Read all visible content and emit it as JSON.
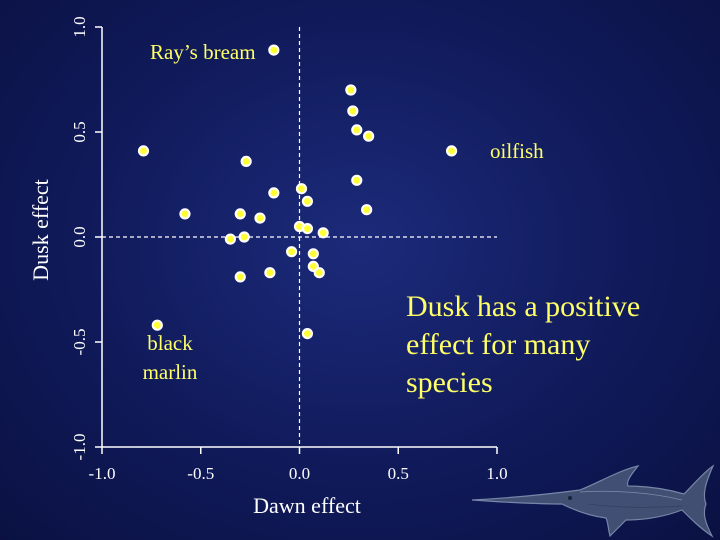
{
  "chart_data": {
    "type": "scatter",
    "xlabel": "Dawn effect",
    "ylabel": "Dusk effect",
    "xlim": [
      -1.0,
      1.0
    ],
    "ylim": [
      -1.0,
      1.0
    ],
    "xticks": [
      "-1.0",
      "-0.5",
      "0.0",
      "0.5",
      "1.0"
    ],
    "yticks": [
      "-1.0",
      "-0.5",
      "0.0",
      "0.5",
      "1.0"
    ],
    "reference_lines": {
      "x": 0.0,
      "y": 0.0
    },
    "points": [
      {
        "x": -0.13,
        "y": 0.89,
        "label": "Ray’s bream"
      },
      {
        "x": 0.26,
        "y": 0.7
      },
      {
        "x": 0.27,
        "y": 0.6
      },
      {
        "x": 0.29,
        "y": 0.51
      },
      {
        "x": 0.35,
        "y": 0.48
      },
      {
        "x": 0.77,
        "y": 0.41,
        "label": "oilfish"
      },
      {
        "x": -0.79,
        "y": 0.41
      },
      {
        "x": -0.27,
        "y": 0.36
      },
      {
        "x": 0.29,
        "y": 0.27
      },
      {
        "x": -0.13,
        "y": 0.21
      },
      {
        "x": 0.01,
        "y": 0.23
      },
      {
        "x": 0.04,
        "y": 0.17
      },
      {
        "x": 0.34,
        "y": 0.13
      },
      {
        "x": -0.58,
        "y": 0.11
      },
      {
        "x": -0.3,
        "y": 0.11
      },
      {
        "x": -0.2,
        "y": 0.09
      },
      {
        "x": 0.0,
        "y": 0.05
      },
      {
        "x": 0.04,
        "y": 0.04
      },
      {
        "x": 0.12,
        "y": 0.02
      },
      {
        "x": -0.35,
        "y": -0.01
      },
      {
        "x": -0.28,
        "y": 0.0
      },
      {
        "x": -0.04,
        "y": -0.07
      },
      {
        "x": 0.07,
        "y": -0.08
      },
      {
        "x": 0.07,
        "y": -0.14
      },
      {
        "x": 0.1,
        "y": -0.17
      },
      {
        "x": -0.15,
        "y": -0.17
      },
      {
        "x": -0.3,
        "y": -0.19
      },
      {
        "x": -0.72,
        "y": -0.42,
        "label": "black marlin"
      },
      {
        "x": 0.04,
        "y": -0.46
      }
    ],
    "labels": {
      "rays_bream": "Ray’s bream",
      "oilfish": "oilfish",
      "black_marlin_line1": "black",
      "black_marlin_line2": "marlin"
    },
    "annotation": [
      "Dusk has a positive",
      "effect for many",
      "species"
    ]
  },
  "colors": {
    "background": "#101a5a",
    "point_fill": "#ffff33",
    "point_edge": "#ffffff",
    "annotation": "#ffff66",
    "axis": "#ffffff"
  },
  "icons": {
    "decoration": "swordfish-icon"
  }
}
